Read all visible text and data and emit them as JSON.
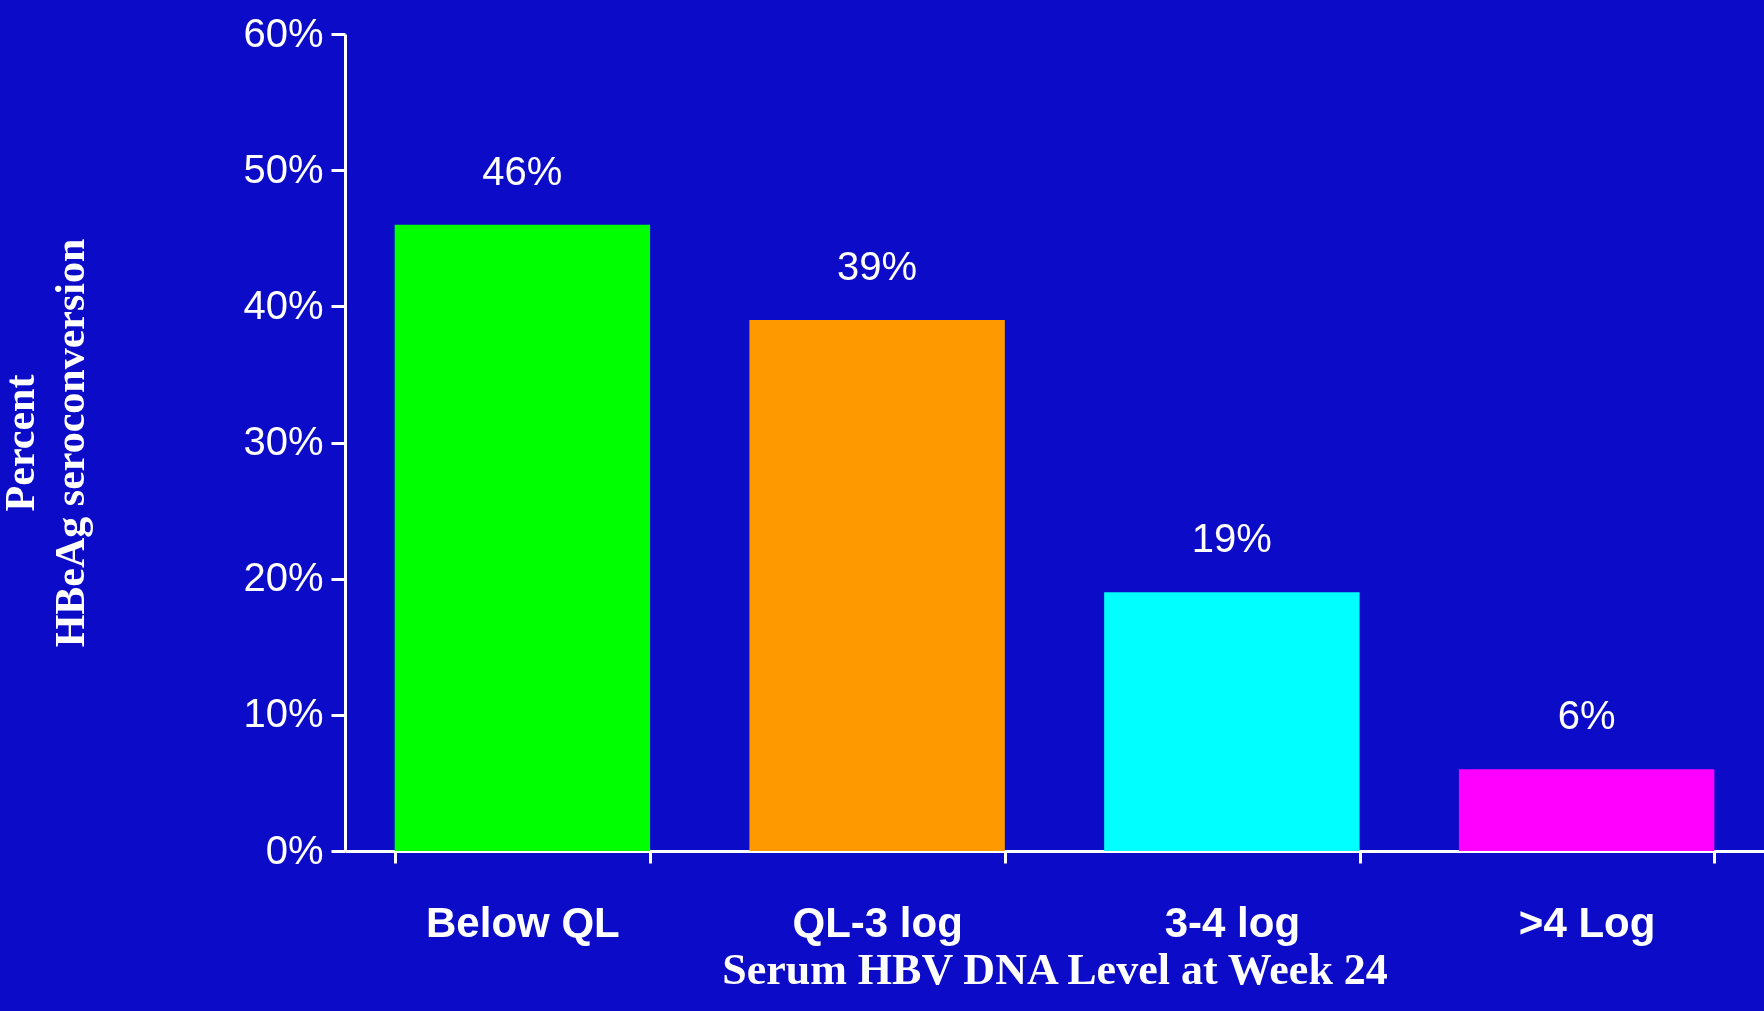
{
  "chart_data": {
    "type": "bar",
    "xlabel": "Serum HBV DNA Level at Week 24",
    "ylabel": "Percent\nHBeAg seroconversion",
    "categories": [
      "Below QL",
      "QL-3 log",
      "3-4 log",
      ">4 Log"
    ],
    "values": [
      46,
      39,
      19,
      6
    ],
    "colors": [
      "#00ff00",
      "#ff9900",
      "#00ffff",
      "#ff00ff"
    ],
    "value_labels": [
      "46%",
      "39%",
      "19%",
      "6%"
    ],
    "ylim": [
      0,
      60
    ],
    "yticks": [
      {
        "value": 0,
        "label": "0%"
      },
      {
        "value": 10,
        "label": "10%"
      },
      {
        "value": 20,
        "label": "20%"
      },
      {
        "value": 30,
        "label": "30%"
      },
      {
        "value": 40,
        "label": "40%"
      },
      {
        "value": 50,
        "label": "50%"
      },
      {
        "value": 60,
        "label": "60%"
      }
    ],
    "grid": false,
    "legend": false
  }
}
